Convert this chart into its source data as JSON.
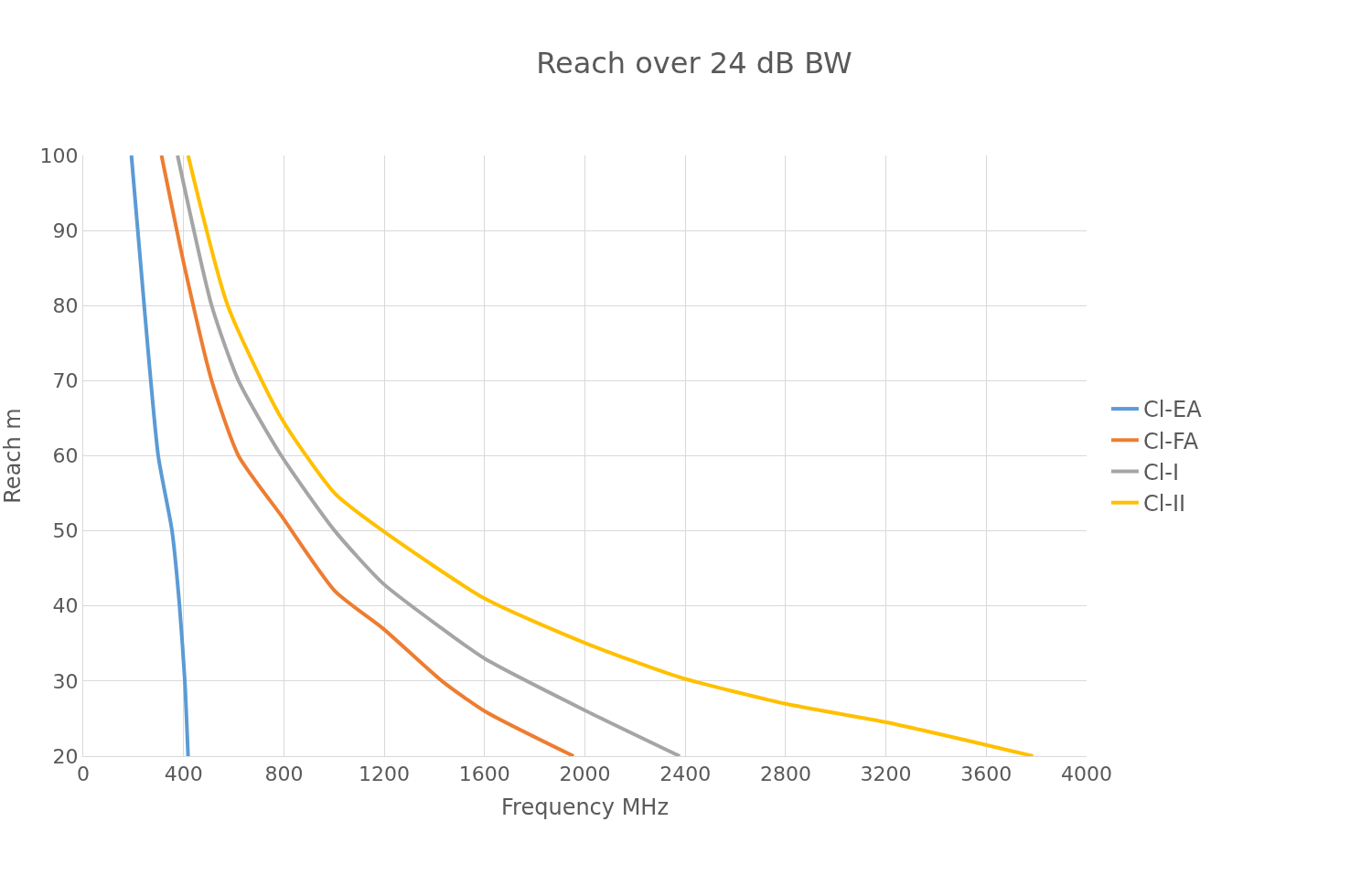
{
  "chart_data": {
    "type": "line",
    "title": "Reach over 24 dB BW",
    "xlabel": "Frequency MHz",
    "ylabel": "Reach m",
    "xlim": [
      0,
      4000
    ],
    "xticks": [
      0,
      400,
      800,
      1200,
      1600,
      2000,
      2400,
      2800,
      3200,
      3600,
      4000
    ],
    "ylim": [
      20,
      100
    ],
    "yticks": [
      20,
      30,
      40,
      50,
      60,
      70,
      80,
      90,
      100
    ],
    "grid": true,
    "legend": "right",
    "marker": "none",
    "line_style": "solid",
    "series": [
      {
        "name": "Cl-EA",
        "color": "#5b9bd5",
        "x": [
          192,
          243,
          299,
          354,
          384,
          405,
          418
        ],
        "values": [
          100,
          80,
          60,
          50,
          40,
          30,
          20
        ]
      },
      {
        "name": "Cl-FA",
        "color": "#ed7d31",
        "x": [
          312,
          405,
          512,
          619,
          790,
          1003,
          1195,
          1430,
          1600,
          1955
        ],
        "values": [
          100,
          85,
          70,
          60,
          52,
          42,
          37,
          30,
          26,
          20
        ]
      },
      {
        "name": "Cl-I",
        "color": "#a5a5a5",
        "x": [
          376,
          512,
          619,
          790,
          1003,
          1195,
          1430,
          1600,
          2006,
          2378
        ],
        "values": [
          100,
          80,
          70,
          60,
          50,
          43,
          37,
          33,
          26,
          20
        ]
      },
      {
        "name": "Cl-II",
        "color": "#ffc000",
        "x": [
          418,
          576,
          790,
          1003,
          1195,
          1600,
          2006,
          2378,
          2796,
          3202,
          3599,
          3787
        ],
        "values": [
          100,
          80,
          65,
          55,
          50,
          41,
          35,
          30.5,
          27,
          24.5,
          21.5,
          20
        ]
      }
    ]
  }
}
